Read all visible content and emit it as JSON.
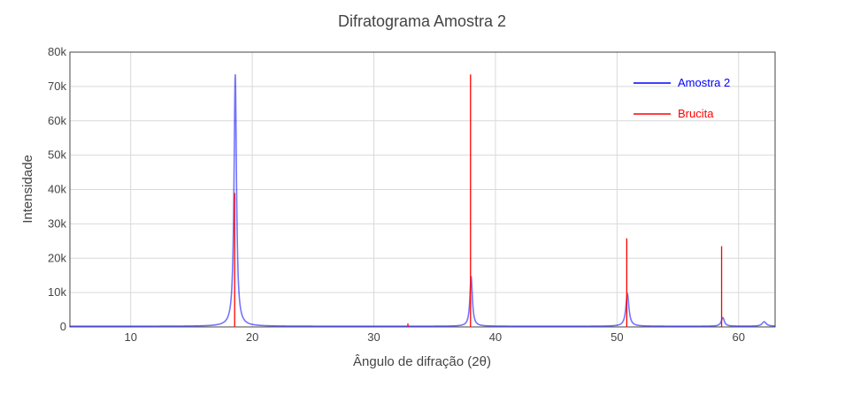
{
  "chart_data": {
    "type": "line",
    "title": "Difratograma Amostra 2",
    "xlabel": "Ângulo de difração (2θ)",
    "ylabel": "Intensidade",
    "xlim": [
      5,
      63
    ],
    "ylim": [
      0,
      80000
    ],
    "x_ticks": [
      10,
      20,
      30,
      40,
      50,
      60
    ],
    "x_tick_labels": [
      "10",
      "20",
      "30",
      "40",
      "50",
      "60"
    ],
    "y_ticks": [
      0,
      10000,
      20000,
      30000,
      40000,
      50000,
      60000,
      70000,
      80000
    ],
    "y_tick_labels": [
      "0",
      "10k",
      "20k",
      "30k",
      "40k",
      "50k",
      "60k",
      "70k",
      "80k"
    ],
    "grid": true,
    "legend_position": "top-right",
    "series": [
      {
        "name": "Amostra 2",
        "color": "#0000ff",
        "render": "profile",
        "baseline": 200,
        "peaks": [
          {
            "x": 18.6,
            "y": 73500,
            "width": 0.12
          },
          {
            "x": 38.0,
            "y": 14500,
            "width": 0.12
          },
          {
            "x": 50.85,
            "y": 9500,
            "width": 0.15
          },
          {
            "x": 58.7,
            "y": 2500,
            "width": 0.15
          },
          {
            "x": 62.1,
            "y": 1300,
            "width": 0.2
          }
        ]
      },
      {
        "name": "Brucita",
        "color": "#ff0000",
        "render": "sticks",
        "peaks": [
          {
            "x": 18.55,
            "y": 39000
          },
          {
            "x": 32.8,
            "y": 1000
          },
          {
            "x": 37.95,
            "y": 73500
          },
          {
            "x": 50.8,
            "y": 25800
          },
          {
            "x": 58.6,
            "y": 23500
          }
        ]
      }
    ]
  }
}
